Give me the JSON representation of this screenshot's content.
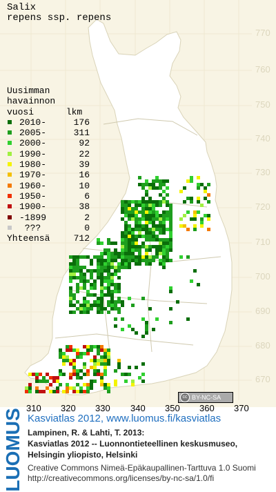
{
  "species": {
    "line1": "Salix",
    "line2": "repens ssp. repens"
  },
  "legend": {
    "heading": [
      "Uusimman",
      "havainnon",
      "vuosi      lkm"
    ],
    "rows": [
      {
        "label": "2010-",
        "count": "176",
        "color": "#0a6e0a"
      },
      {
        "label": "2005-",
        "count": "311",
        "color": "#1e9e1e"
      },
      {
        "label": "2000-",
        "count": "92",
        "color": "#30d030"
      },
      {
        "label": "1990-",
        "count": "22",
        "color": "#a0f040"
      },
      {
        "label": "1980-",
        "count": "39",
        "color": "#f4f400"
      },
      {
        "label": "1970-",
        "count": "16",
        "color": "#f4c000"
      },
      {
        "label": "1960-",
        "count": "10",
        "color": "#f47a00"
      },
      {
        "label": "1950-",
        "count": "6",
        "color": "#f03000"
      },
      {
        "label": "1900-",
        "count": "38",
        "color": "#c01010"
      },
      {
        "label": "-1899",
        "count": "2",
        "color": "#800000"
      },
      {
        "label": " ???",
        "count": "0",
        "color": "#c8c8c8"
      }
    ],
    "total_label": "Yhteensä",
    "total_count": "712"
  },
  "axes": {
    "y_ticks": [
      "770",
      "760",
      "750",
      "740",
      "730",
      "720",
      "710",
      "700",
      "690",
      "680",
      "670"
    ],
    "x_ticks": [
      "310",
      "320",
      "330",
      "340",
      "350",
      "360",
      "370"
    ]
  },
  "license_badge": "BY-NC-SA",
  "logo_text": "LUOMUS",
  "footer": {
    "link": "Kasviatlas 2012, www.luomus.fi/kasviatlas",
    "citation1": "Lampinen, R. & Lahti, T. 2013:",
    "citation2": "Kasviatlas 2012 -- Luonnontieteellinen keskusmuseo,",
    "citation3": "Helsingin yliopisto, Helsinki",
    "license1": "Creative Commons Nimeä-Epäkaupallinen-Tarttuva 1.0 Suomi",
    "license2": "http://creativecommons.org/licenses/by-nc-sa/1.0/fi"
  }
}
